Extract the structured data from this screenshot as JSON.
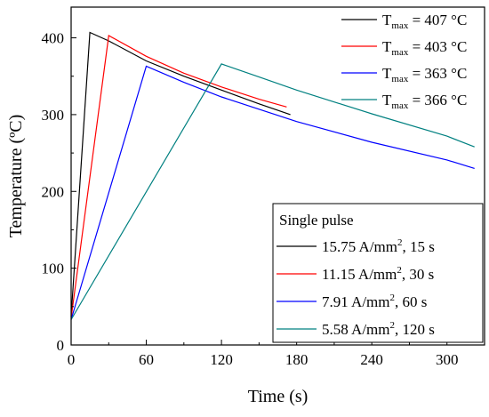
{
  "chart_data": {
    "type": "line",
    "xlabel": "Time (s)",
    "ylabel": "Temperature (ºC)",
    "xlim": [
      0,
      330
    ],
    "ylim": [
      0,
      440
    ],
    "xticks": [
      0,
      60,
      120,
      180,
      240,
      300
    ],
    "yticks": [
      0,
      100,
      200,
      300,
      400
    ],
    "grid": false,
    "legend_placement": "top-right",
    "series": [
      {
        "color": "#000000",
        "tmax": {
          "base": "T",
          "sub": "max",
          "rest": " = 407 °C"
        },
        "pulse": {
          "base": "15.75 A/mm",
          "sup": "2",
          "rest": ", 15 s"
        },
        "x": [
          0,
          15,
          30,
          60,
          90,
          120,
          150,
          175
        ],
        "y": [
          37,
          407,
          396,
          370,
          350,
          332,
          314,
          300
        ]
      },
      {
        "color": "#ff0000",
        "tmax": {
          "base": "T",
          "sub": "max",
          "rest": " = 403 °C"
        },
        "pulse": {
          "base": "11.15 A/mm",
          "sup": "2",
          "rest": ", 30 s"
        },
        "x": [
          0,
          30,
          60,
          90,
          120,
          150,
          172
        ],
        "y": [
          35,
          403,
          376,
          354,
          336,
          320,
          310
        ]
      },
      {
        "color": "#0000ff",
        "tmax": {
          "base": "T",
          "sub": "max",
          "rest": " = 363 °C"
        },
        "pulse": {
          "base": "7.91 A/mm",
          "sup": "2",
          "rest": ", 60 s"
        },
        "x": [
          0,
          60,
          90,
          120,
          180,
          240,
          300,
          322
        ],
        "y": [
          33,
          363,
          342,
          323,
          291,
          264,
          241,
          230
        ]
      },
      {
        "color": "#008080",
        "tmax": {
          "base": "T",
          "sub": "max",
          "rest": " = 366 °C"
        },
        "pulse": {
          "base": "5.58 A/mm",
          "sup": "2",
          "rest": ", 120 s"
        },
        "x": [
          0,
          120,
          150,
          180,
          240,
          300,
          322
        ],
        "y": [
          33,
          366,
          349,
          332,
          301,
          272,
          258
        ]
      }
    ],
    "pulse_legend_title": "Single pulse"
  }
}
